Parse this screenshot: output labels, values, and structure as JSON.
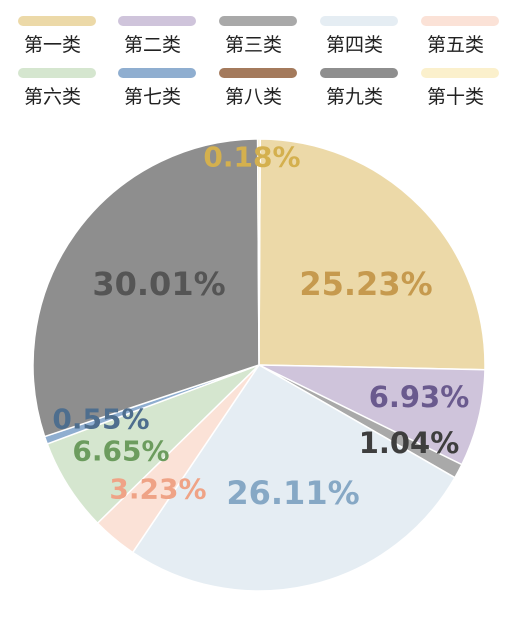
{
  "chart_data": {
    "type": "pie",
    "title": "",
    "legend_placement": "top",
    "series": [
      {
        "name": "第一类",
        "value": 25.23,
        "label": "25.23%",
        "color": "#ECD9A8",
        "label_color": "#C69A4E"
      },
      {
        "name": "第二类",
        "value": 6.93,
        "label": "6.93%",
        "color": "#CFC4DB",
        "label_color": "#6A5A8E"
      },
      {
        "name": "第三类",
        "value": 1.04,
        "label": "1.04%",
        "color": "#A9A9A9",
        "label_color": "#3E3E3E"
      },
      {
        "name": "第四类",
        "value": 26.11,
        "label": "26.11%",
        "color": "#E5EDF3",
        "label_color": "#86A8C5"
      },
      {
        "name": "第五类",
        "value": 3.23,
        "label": "3.23%",
        "color": "#FBE2D7",
        "label_color": "#EFA386"
      },
      {
        "name": "第六类",
        "value": 6.65,
        "label": "6.65%",
        "color": "#D5E6CF",
        "label_color": "#6C9C5E"
      },
      {
        "name": "第七类",
        "value": 0.55,
        "label": "0.55%",
        "color": "#8FAED0",
        "label_color": "#4E6E8E"
      },
      {
        "name": "第八类",
        "value": 0.0,
        "label": "",
        "color": "#A47A5C",
        "label_color": "#A47A5C"
      },
      {
        "name": "第九类",
        "value": 30.01,
        "label": "30.01%",
        "color": "#8E8E8E",
        "label_color": "#555555"
      },
      {
        "name": "第十类",
        "value": 0.18,
        "label": "0.18%",
        "color": "#FBF0CC",
        "label_color": "#D4B04E"
      }
    ]
  }
}
